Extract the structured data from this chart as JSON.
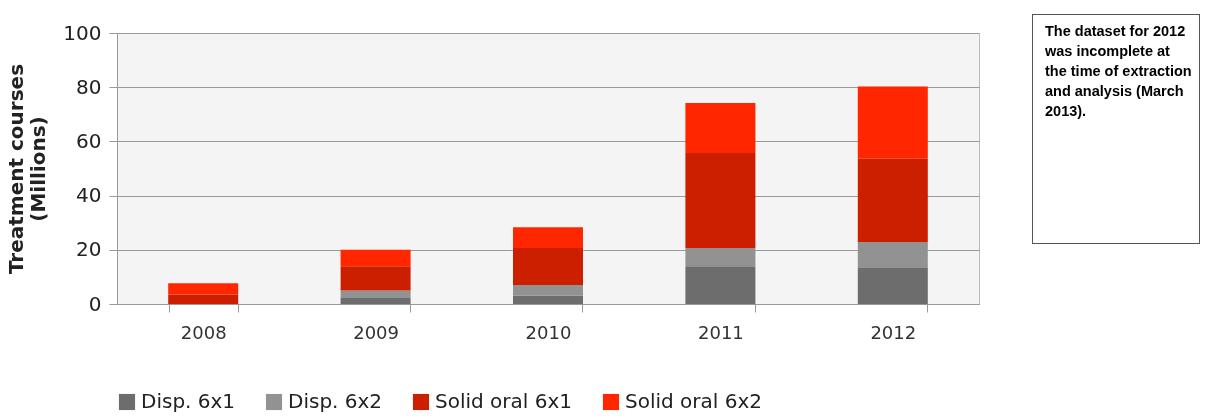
{
  "chart_data": {
    "type": "bar",
    "ylabel": "Treatment courses (Millions)",
    "categories": [
      "2008",
      "2009",
      "2010",
      "2011",
      "2012"
    ],
    "stacked": true,
    "series": [
      {
        "name": "Disp. 6x1",
        "color": "#6d6d6d",
        "values": [
          0,
          2.2,
          3.0,
          13.9,
          13.3
        ]
      },
      {
        "name": "Disp. 6x2",
        "color": "#929292",
        "values": [
          0,
          2.8,
          4.0,
          6.8,
          9.6
        ]
      },
      {
        "name": "Solid oral 6x1",
        "color": "#cc1f00",
        "values": [
          3.5,
          8.9,
          13.7,
          35.0,
          30.7
        ]
      },
      {
        "name": "Solid oral 6x2",
        "color": "#ff2600",
        "values": [
          4.2,
          6.1,
          7.6,
          18.5,
          26.7
        ]
      }
    ],
    "ylim": [
      0,
      100
    ],
    "yticks": [
      0,
      20,
      40,
      60,
      80,
      100
    ],
    "grid": "y",
    "legend": "bottom",
    "annotations": [
      "The dataset for 2012 was incomplete at the time of extraction and analysis (March 2013)."
    ]
  }
}
